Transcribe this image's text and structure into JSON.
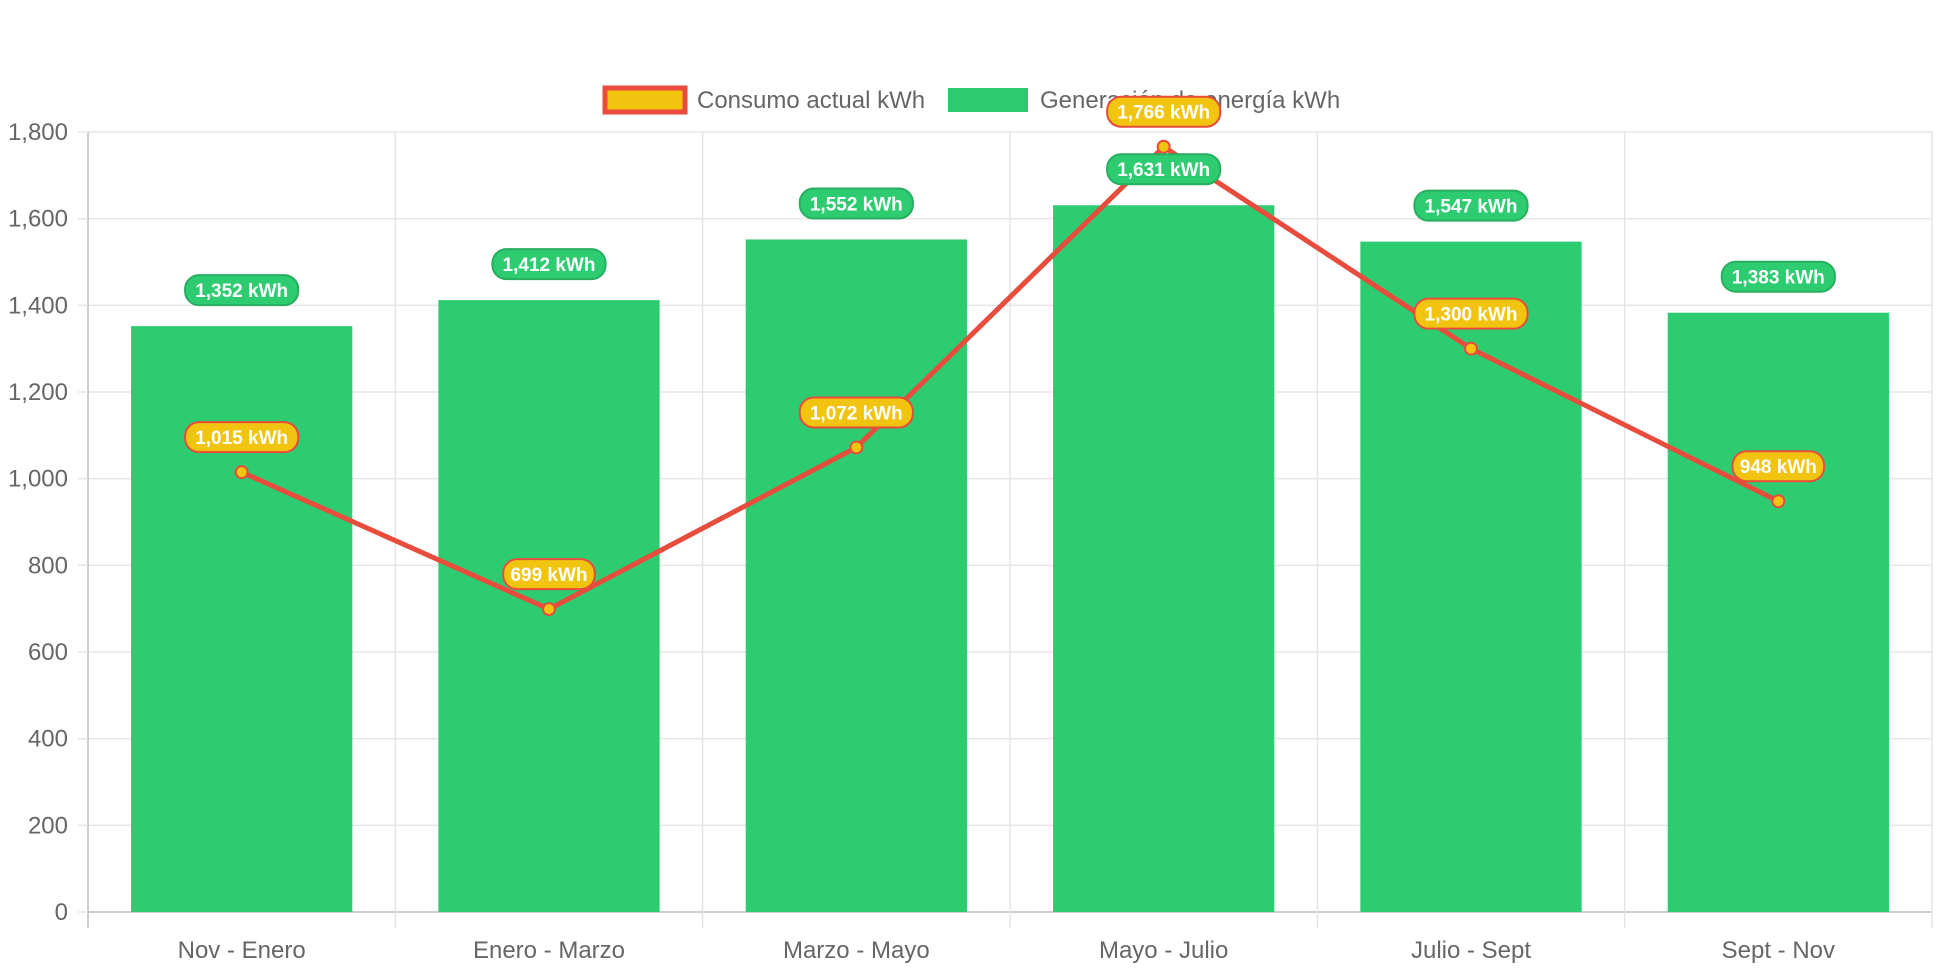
{
  "chart_data": {
    "type": "bar",
    "categories": [
      "Nov - Enero",
      "Enero - Marzo",
      "Marzo - Mayo",
      "Mayo - Julio",
      "Julio - Sept",
      "Sept - Nov"
    ],
    "ylim": [
      0,
      1800
    ],
    "yticks": [
      0,
      200,
      400,
      600,
      800,
      1000,
      1200,
      1400,
      1600,
      1800
    ],
    "ytick_labels": [
      "0",
      "200",
      "400",
      "600",
      "800",
      "1,000",
      "1,200",
      "1,400",
      "1,600",
      "1,800"
    ],
    "grid": true,
    "legend_position": "top-center",
    "series": [
      {
        "name": "Consumo actual kWh",
        "type": "line",
        "values": [
          1015,
          699,
          1072,
          1766,
          1300,
          948
        ],
        "labels": [
          "1,015 kWh",
          "699 kWh",
          "1,072 kWh",
          "1,766 kWh",
          "1,300 kWh",
          "948 kWh"
        ],
        "color": "#e74c3c",
        "fill_color": "#f1c40f"
      },
      {
        "name": "Generación de energía kWh",
        "type": "bar",
        "values": [
          1352,
          1412,
          1552,
          1631,
          1547,
          1383
        ],
        "labels": [
          "1,352 kWh",
          "1,412 kWh",
          "1,552 kWh",
          "1,631 kWh",
          "1,547 kWh",
          "1,383 kWh"
        ],
        "color": "#2ecc71",
        "border_color": "#27ae60"
      }
    ]
  }
}
